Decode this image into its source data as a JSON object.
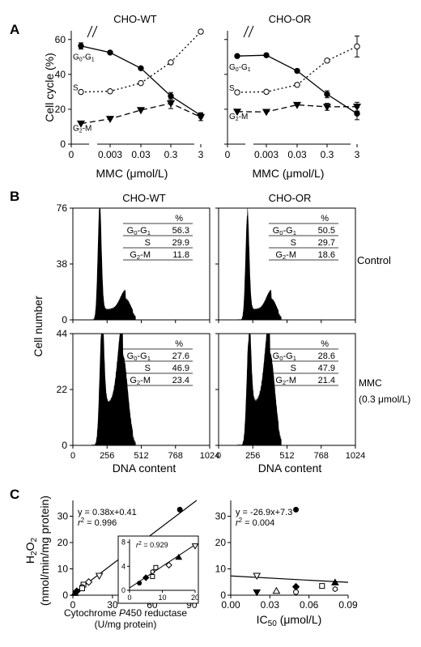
{
  "chart_data": [
    {
      "type": "line",
      "panel": "A",
      "title": "CHO-WT",
      "xlabel": "MMC (μmol/L)",
      "ylabel": "Cell cycle (%)",
      "x_ticks": [
        "0",
        "0.003",
        "0.03",
        "0.3",
        "3"
      ],
      "ylim": [
        0,
        65
      ],
      "y_ticks": [
        0,
        20,
        40,
        60
      ],
      "series": [
        {
          "name": "G0-G1",
          "values": [
            56.3,
            52.5,
            43.5,
            27.6,
            16.5
          ],
          "errors": [
            1.8,
            0,
            0,
            2.0,
            1.5
          ]
        },
        {
          "name": "S",
          "values": [
            29.9,
            30.3,
            35.0,
            46.9,
            64.5
          ],
          "errors": [
            0,
            0,
            0,
            0,
            0
          ]
        },
        {
          "name": "G2-M",
          "values": [
            11.8,
            14.5,
            19.5,
            23.4,
            15.5
          ],
          "errors": [
            0,
            0,
            0,
            3.0,
            2.0
          ]
        }
      ]
    },
    {
      "type": "line",
      "panel": "A",
      "title": "CHO-OR",
      "xlabel": "MMC (μmol/L)",
      "ylabel": "",
      "x_ticks": [
        "0",
        "0.003",
        "0.03",
        "0.3",
        "3"
      ],
      "ylim": [
        0,
        65
      ],
      "y_ticks": [
        0,
        20,
        40,
        60
      ],
      "series": [
        {
          "name": "G0-G1",
          "values": [
            50.5,
            51.0,
            42.0,
            28.6,
            17.5
          ],
          "errors": [
            0,
            0,
            0,
            2.0,
            3.5
          ]
        },
        {
          "name": "S",
          "values": [
            29.7,
            30.0,
            34.0,
            47.9,
            56.0
          ],
          "errors": [
            0,
            0,
            0,
            0,
            6.0
          ]
        },
        {
          "name": "G2-M",
          "values": [
            18.6,
            18.5,
            22.5,
            21.4,
            21.5
          ],
          "errors": [
            0,
            0,
            0,
            2.0,
            2.5
          ]
        }
      ]
    },
    {
      "type": "bar",
      "panel": "B",
      "title": "CHO-WT",
      "row": "Control",
      "xlabel": "DNA content",
      "ylabel": "Cell number",
      "x_ticks": [
        0,
        256,
        512,
        768,
        1024
      ],
      "xlim": [
        0,
        1024
      ],
      "y_ticks": [
        0,
        38,
        76
      ],
      "ylim": [
        0,
        76
      ],
      "peaks": [
        {
          "center": 200,
          "height": 76,
          "width": 14
        },
        {
          "center": 395,
          "height": 13,
          "width": 40
        }
      ],
      "table": {
        "header": "%",
        "rows": [
          [
            "G0-G1",
            "56.3"
          ],
          [
            "S",
            "29.9"
          ],
          [
            "G2-M",
            "11.8"
          ]
        ]
      }
    },
    {
      "type": "bar",
      "panel": "B",
      "title": "CHO-OR",
      "row": "Control",
      "xlabel": "DNA content",
      "ylabel": "",
      "x_ticks": [
        0,
        256,
        512,
        768,
        1024
      ],
      "xlim": [
        0,
        1024
      ],
      "y_ticks": [
        0,
        38,
        76
      ],
      "ylim": [
        0,
        76
      ],
      "peaks": [
        {
          "center": 215,
          "height": 70,
          "width": 14
        },
        {
          "center": 395,
          "height": 13,
          "width": 38
        }
      ],
      "table": {
        "header": "%",
        "rows": [
          [
            "G0-G1",
            "50.5"
          ],
          [
            "S",
            "29.7"
          ],
          [
            "G2-M",
            "18.6"
          ]
        ]
      }
    },
    {
      "type": "bar",
      "panel": "B",
      "title": "CHO-WT",
      "row": "MMC (0.3 μmol/L)",
      "xlabel": "DNA content",
      "ylabel": "Cell number",
      "x_ticks": [
        0,
        256,
        512,
        768,
        1024
      ],
      "xlim": [
        0,
        1024
      ],
      "y_ticks": [
        0,
        22,
        44
      ],
      "ylim": [
        0,
        44
      ],
      "peaks": [
        {
          "center": 215,
          "height": 44,
          "width": 16
        },
        {
          "center": 375,
          "height": 34,
          "width": 36
        }
      ],
      "table": {
        "header": "%",
        "rows": [
          [
            "G0-G1",
            "27.6"
          ],
          [
            "S",
            "46.9"
          ],
          [
            "G2-M",
            "23.4"
          ]
        ]
      }
    },
    {
      "type": "bar",
      "panel": "B",
      "title": "CHO-OR",
      "row": "MMC (0.3 μmol/L)",
      "xlabel": "DNA content",
      "ylabel": "",
      "x_ticks": [
        0,
        256,
        512,
        768,
        1024
      ],
      "xlim": [
        0,
        1024
      ],
      "y_ticks": [
        0,
        22,
        44
      ],
      "ylim": [
        0,
        44
      ],
      "peaks": [
        {
          "center": 225,
          "height": 40,
          "width": 16
        },
        {
          "center": 385,
          "height": 35,
          "width": 36
        }
      ],
      "table": {
        "header": "%",
        "rows": [
          [
            "G0-G1",
            "28.6"
          ],
          [
            "S",
            "47.9"
          ],
          [
            "G2-M",
            "21.4"
          ]
        ]
      }
    },
    {
      "type": "scatter",
      "panel": "C",
      "xlabel": "Cytochrome P450 reductase (U/mg protein)",
      "ylabel": "H2O2 (nmol/min/mg protein)",
      "xlim": [
        0,
        95
      ],
      "x_ticks": [
        0,
        30,
        60,
        90
      ],
      "ylim": [
        0,
        36
      ],
      "y_ticks": [
        0,
        10,
        20,
        30
      ],
      "fit": {
        "slope": 0.38,
        "intercept": 0.41,
        "equation": "y = 0.38x+0.41",
        "r2": "0.996"
      },
      "points": [
        {
          "x": 81,
          "y": 32.5,
          "marker": "circle-filled"
        },
        {
          "x": 20,
          "y": 7.4,
          "marker": "triangle-down-open"
        },
        {
          "x": 12,
          "y": 5.0,
          "marker": "diamond-open"
        },
        {
          "x": 8,
          "y": 4.0,
          "marker": "square-open"
        },
        {
          "x": 7,
          "y": 3.2,
          "marker": "hexagon-open"
        },
        {
          "x": 7,
          "y": 2.6,
          "marker": "square-open"
        },
        {
          "x": 3,
          "y": 1.5,
          "marker": "diamond-filled"
        },
        {
          "x": 2,
          "y": 1.0,
          "marker": "circle-filled"
        },
        {
          "x": 1.5,
          "y": 0.8,
          "marker": "triangle-filled"
        }
      ],
      "inset": {
        "xlim": [
          0,
          20
        ],
        "x_ticks": [
          0,
          10,
          20
        ],
        "ylim": [
          0,
          8.5
        ],
        "y_ticks": [
          0,
          4,
          8
        ],
        "r2": "0.929",
        "fit": {
          "slope": 0.36,
          "intercept": 0.4
        },
        "points": [
          {
            "x": 20,
            "y": 7.4,
            "marker": "triangle-down-open"
          },
          {
            "x": 15,
            "y": 5.5,
            "marker": "triangle-filled"
          },
          {
            "x": 12,
            "y": 4.2,
            "marker": "diamond-open"
          },
          {
            "x": 8,
            "y": 3.8,
            "marker": "square-open"
          },
          {
            "x": 7,
            "y": 3.1,
            "marker": "hexagon-open"
          },
          {
            "x": 7,
            "y": 2.3,
            "marker": "square-open"
          },
          {
            "x": 5,
            "y": 2.1,
            "marker": "diamond-filled"
          },
          {
            "x": 3,
            "y": 1.2,
            "marker": "circle-filled"
          }
        ]
      }
    },
    {
      "type": "scatter",
      "panel": "C",
      "xlabel": "IC50 (μmol/L)",
      "ylabel": "",
      "xlim": [
        0,
        0.09
      ],
      "x_ticks": [
        "0.00",
        "0.03",
        "0.06",
        "0.09"
      ],
      "ylim": [
        0,
        36
      ],
      "y_ticks": [
        0,
        10,
        20,
        30
      ],
      "fit": {
        "slope": -26.9,
        "intercept": 7.3,
        "equation": "y = -26.9x+7.3",
        "r2": "0.004"
      },
      "points": [
        {
          "x": 0.05,
          "y": 32.5,
          "marker": "circle-filled"
        },
        {
          "x": 0.02,
          "y": 7.4,
          "marker": "triangle-down-open"
        },
        {
          "x": 0.02,
          "y": 1.1,
          "marker": "triangle-down-filled"
        },
        {
          "x": 0.035,
          "y": 1.6,
          "marker": "triangle-open"
        },
        {
          "x": 0.05,
          "y": 3.2,
          "marker": "diamond-filled"
        },
        {
          "x": 0.05,
          "y": 1.2,
          "marker": "circle-open"
        },
        {
          "x": 0.07,
          "y": 3.5,
          "marker": "square-open"
        },
        {
          "x": 0.08,
          "y": 4.8,
          "marker": "triangle-filled"
        },
        {
          "x": 0.08,
          "y": 2.3,
          "marker": "hexagon-open"
        }
      ]
    }
  ],
  "labels": {
    "panel_a": "A",
    "panel_b": "B",
    "panel_c": "C",
    "cho_wt": "CHO-WT",
    "cho_or": "CHO-OR",
    "row_control": "Control",
    "row_mmc": "MMC",
    "row_mmc_conc": "(0.3 μmol/L)",
    "cell_cycle": "Cell cycle (%)",
    "cell_number": "Cell number",
    "mmc_axis": "MMC (μmol/L)",
    "dna_content": "DNA content",
    "h2o2": "(nmol/min/mg protein)",
    "cyp_line1": "Cytochrome P450 reductase",
    "cyp_line2": "(U/mg protein)",
    "ic50": "(μmol/L)"
  }
}
